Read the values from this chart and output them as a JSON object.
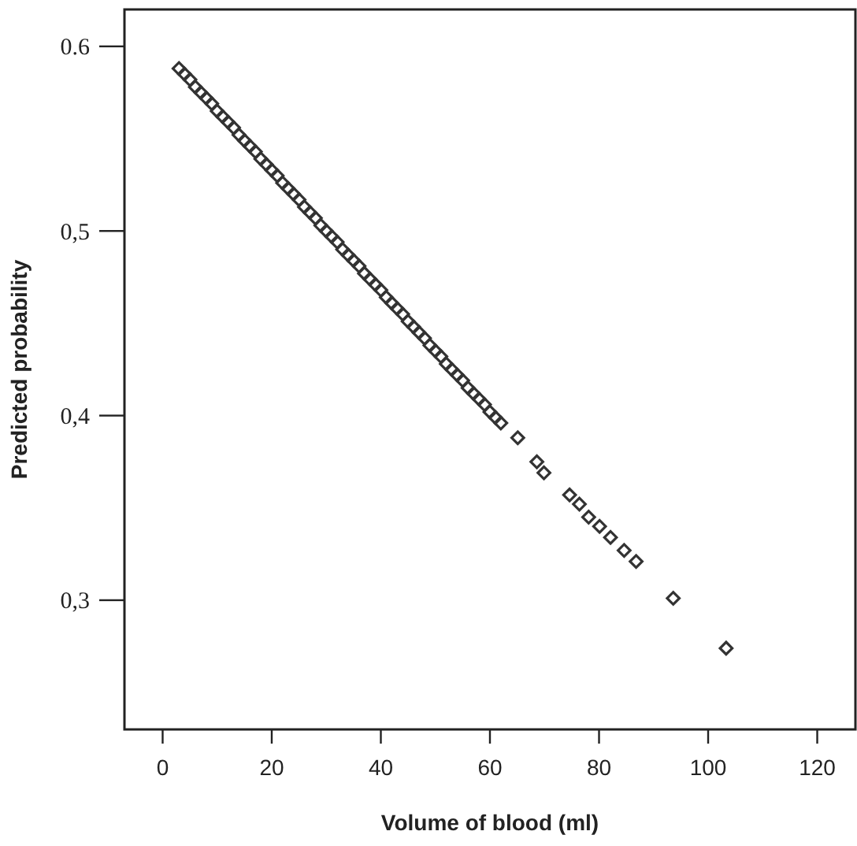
{
  "chart_data": {
    "type": "scatter",
    "xlabel": "Volume of blood (ml)",
    "ylabel": "Predicted probability",
    "x": [
      3,
      4,
      5,
      6,
      7,
      8,
      9,
      10,
      11,
      12,
      13,
      14,
      15,
      16,
      17,
      18,
      19,
      20,
      21,
      22,
      23,
      24,
      25,
      26,
      27,
      28,
      29,
      30,
      31,
      32,
      33,
      34,
      35,
      36,
      37,
      38,
      39,
      40,
      41,
      42,
      43,
      44,
      45,
      46,
      47,
      48,
      49,
      50,
      51,
      52,
      53,
      54,
      55,
      56,
      57,
      58,
      59,
      60,
      61,
      62,
      65.1,
      68.6,
      69.9,
      74.6,
      76.4,
      78.1,
      80.1,
      82.1,
      84.6,
      86.8,
      93.6,
      103.3
    ],
    "series": [
      {
        "color": "#333333",
        "values": [
          0.588,
          0.585,
          0.582,
          0.578,
          0.575,
          0.572,
          0.569,
          0.565,
          0.562,
          0.559,
          0.556,
          0.552,
          0.549,
          0.546,
          0.543,
          0.539,
          0.536,
          0.533,
          0.53,
          0.526,
          0.523,
          0.52,
          0.517,
          0.513,
          0.51,
          0.507,
          0.503,
          0.5,
          0.497,
          0.494,
          0.49,
          0.487,
          0.484,
          0.481,
          0.477,
          0.474,
          0.471,
          0.468,
          0.464,
          0.461,
          0.458,
          0.455,
          0.451,
          0.448,
          0.445,
          0.442,
          0.438,
          0.435,
          0.432,
          0.428,
          0.425,
          0.422,
          0.419,
          0.415,
          0.412,
          0.409,
          0.406,
          0.402,
          0.399,
          0.396,
          0.388,
          0.375,
          0.369,
          0.357,
          0.352,
          0.345,
          0.34,
          0.334,
          0.327,
          0.321,
          0.301,
          0.274
        ]
      }
    ],
    "xlim": [
      -7,
      127
    ],
    "xticks": [
      0,
      20,
      40,
      60,
      80,
      100,
      120
    ],
    "ylim": [
      0.23,
      0.62
    ],
    "yticks": [
      0.6,
      {
        "value": 0.5,
        "label": "0,5"
      },
      {
        "value": 0.4,
        "label": "0,4"
      },
      {
        "value": 0.3,
        "label": "0,3"
      }
    ],
    "marker": "diamond"
  }
}
